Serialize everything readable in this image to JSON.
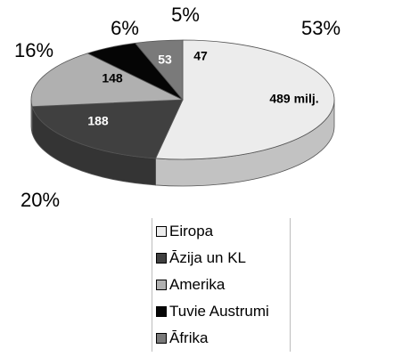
{
  "chart_data": {
    "type": "pie",
    "categories": [
      "Eiropa",
      "Āzija un KL",
      "Amerika",
      "Tuvie Austrumi",
      "Āfrika"
    ],
    "values": [
      489,
      188,
      148,
      53,
      47
    ],
    "value_labels": [
      "489 milj.",
      "188",
      "148",
      "53",
      "47"
    ],
    "percent_labels": [
      "53%",
      "20%",
      "16%",
      "6%",
      "5%"
    ],
    "colors": [
      "#ececec",
      "#404040",
      "#b0b0b0",
      "#050505",
      "#7a7a7a"
    ],
    "value_label_colors": [
      "#000000",
      "#ffffff",
      "#000000",
      "#ffffff",
      "#000000"
    ],
    "legend_position": "bottom"
  }
}
